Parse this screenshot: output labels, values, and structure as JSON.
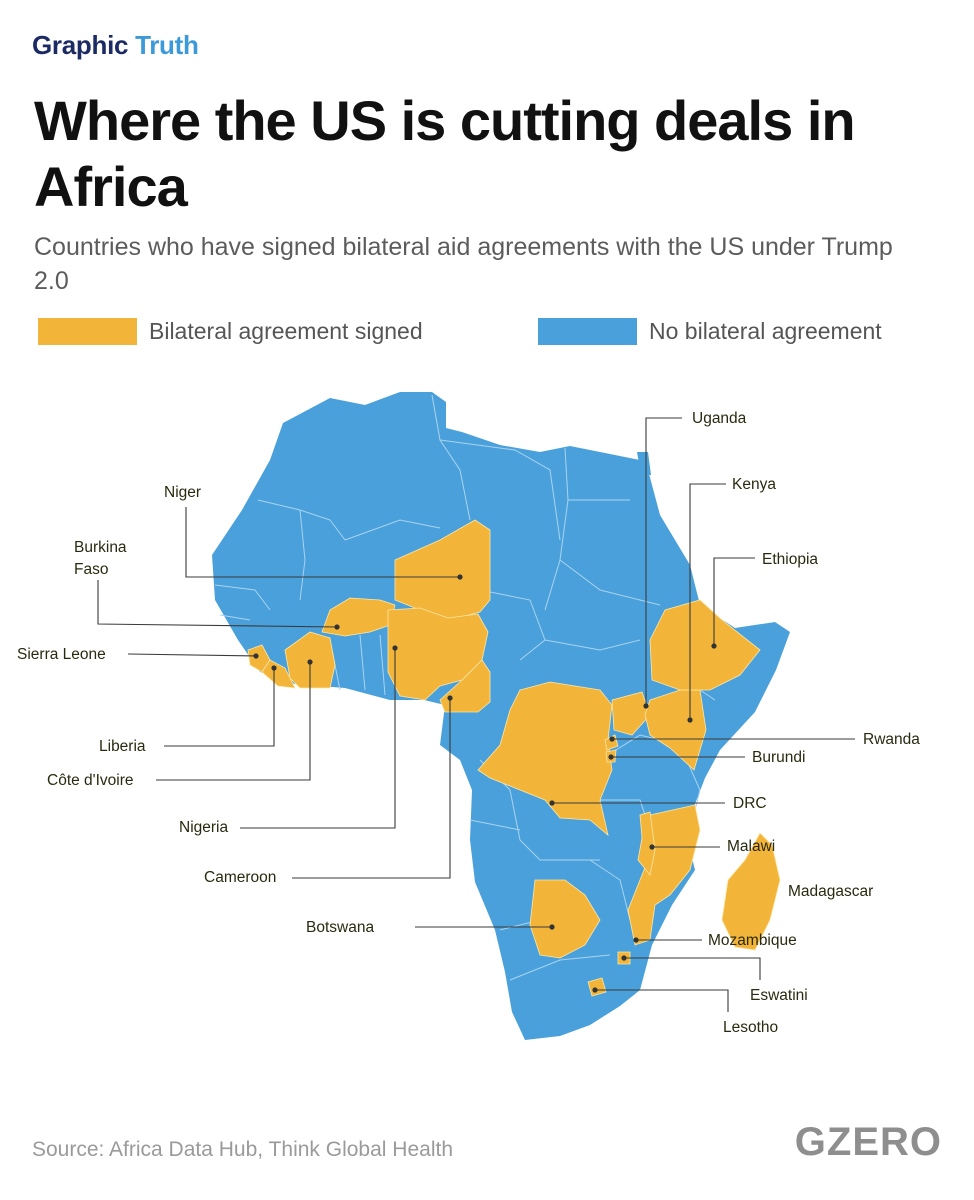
{
  "brand": {
    "word1": "Graphic",
    "word2": "Truth"
  },
  "title": "Where the US is cutting deals in Africa",
  "subtitle": "Countries who have signed bilateral aid agreements with the US under Trump 2.0",
  "legend": [
    {
      "label": "Bilateral agreement signed",
      "color": "#f2b53a"
    },
    {
      "label": "No bilateral agreement",
      "color": "#4aa0db"
    }
  ],
  "colors": {
    "signed": "#f2b53a",
    "no_agreement": "#4aa0db",
    "border": "#a9d3f0"
  },
  "signed_countries": [
    "Uganda",
    "Kenya",
    "Niger",
    "Burkina Faso",
    "Ethiopia",
    "Sierra Leone",
    "Rwanda",
    "Liberia",
    "Burundi",
    "Côte d'Ivoire",
    "DRC",
    "Nigeria",
    "Malawi",
    "Cameroon",
    "Madagascar",
    "Botswana",
    "Mozambique",
    "Eswatini",
    "Lesotho"
  ],
  "source": "Source: Africa Data Hub, Think Global Health",
  "logo": "GZERO"
}
